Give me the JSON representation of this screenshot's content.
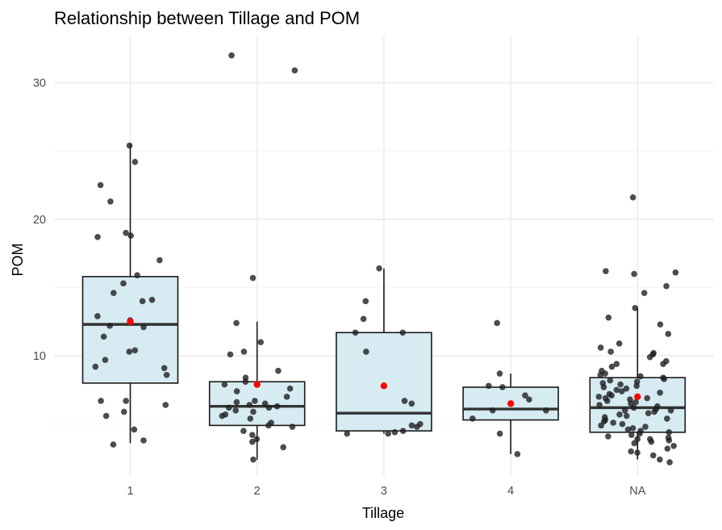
{
  "chart_data": {
    "type": "boxplot",
    "title": "Relationship between Tillage and POM",
    "xlabel": "Tillage",
    "ylabel": "POM",
    "categories": [
      "1",
      "2",
      "3",
      "4",
      "NA"
    ],
    "ylim": [
      1.2,
      33.4
    ],
    "y_ticks": [
      10,
      20,
      30
    ],
    "grid": true,
    "colors": {
      "box_fill": "#d6ebf2",
      "box_stroke": "#1a1a1a",
      "median": "#333333",
      "point": "#1f1f1f",
      "mean": "#ff0000",
      "grid_major": "#ebebeb",
      "grid_minor": "#f4f4f4"
    },
    "boxes": [
      {
        "category": "1",
        "whisker_low": 3.6,
        "q1": 8.0,
        "median": 12.3,
        "q3": 15.8,
        "whisker_high": 25.5,
        "mean": 12.5,
        "outliers": []
      },
      {
        "category": "2",
        "whisker_low": 2.4,
        "q1": 4.9,
        "median": 6.3,
        "q3": 8.1,
        "whisker_high": 12.5,
        "mean": 7.9,
        "outliers": [
          30.9,
          32.0
        ]
      },
      {
        "category": "3",
        "whisker_low": 4.3,
        "q1": 4.5,
        "median": 5.8,
        "q3": 11.7,
        "whisker_high": 16.4,
        "mean": 7.8,
        "outliers": []
      },
      {
        "category": "4",
        "whisker_low": 2.8,
        "q1": 5.3,
        "median": 6.1,
        "q3": 7.7,
        "whisker_high": 8.7,
        "mean": 6.5,
        "outliers": []
      },
      {
        "category": "NA",
        "whisker_low": 2.4,
        "q1": 4.4,
        "median": 6.2,
        "q3": 8.4,
        "whisker_high": 13.5,
        "mean": 7.0,
        "outliers": []
      }
    ],
    "points": [
      {
        "category": "1",
        "values": [
          25.4,
          24.2,
          22.5,
          21.3,
          19.0,
          18.8,
          18.7,
          17.0,
          15.9,
          15.3,
          14.6,
          14.1,
          14.0,
          12.9,
          12.6,
          12.2,
          12.1,
          11.4,
          10.4,
          10.3,
          9.7,
          9.2,
          9.1,
          8.6,
          6.7,
          6.7,
          6.4,
          5.6,
          5.9,
          4.6,
          3.8,
          3.5
        ]
      },
      {
        "category": "2",
        "values": [
          32.0,
          30.9,
          15.7,
          12.4,
          11.0,
          10.3,
          10.1,
          8.9,
          8.4,
          8.1,
          7.9,
          7.6,
          7.4,
          7.0,
          6.7,
          6.6,
          6.5,
          6.4,
          6.3,
          6.2,
          6.2,
          6.0,
          5.9,
          5.7,
          5.6,
          5.4,
          5.1,
          4.9,
          4.8,
          4.5,
          4.2,
          3.9,
          3.7,
          3.3,
          2.4
        ]
      },
      {
        "category": "3",
        "values": [
          16.4,
          14.0,
          12.7,
          11.7,
          11.7,
          10.3,
          6.7,
          6.5,
          5.0,
          4.8,
          4.9,
          4.5,
          4.4,
          4.3,
          4.3
        ]
      },
      {
        "category": "4",
        "values": [
          12.4,
          8.7,
          7.8,
          7.7,
          7.1,
          6.8,
          6.0,
          6.0,
          5.4,
          4.3,
          2.8
        ]
      },
      {
        "category": "NA",
        "values": [
          21.6,
          16.2,
          16.1,
          16.0,
          15.1,
          14.6,
          13.5,
          12.8,
          12.3,
          11.6,
          10.9,
          10.6,
          10.3,
          10.2,
          10.1,
          9.9,
          9.6,
          9.4,
          9.4,
          9.2,
          8.9,
          8.7,
          8.6,
          8.5,
          8.4,
          8.3,
          8.2,
          8.1,
          8.0,
          7.9,
          7.8,
          7.7,
          7.6,
          7.5,
          7.4,
          7.3,
          7.2,
          7.1,
          7.0,
          6.9,
          6.9,
          6.8,
          6.7,
          6.6,
          6.5,
          6.4,
          6.3,
          6.2,
          6.1,
          6.0,
          6.0,
          5.9,
          5.8,
          5.7,
          5.6,
          5.5,
          5.4,
          5.3,
          5.2,
          5.1,
          5.0,
          4.9,
          4.8,
          4.7,
          4.6,
          4.5,
          4.4,
          4.3,
          4.2,
          4.1,
          4.0,
          3.9,
          3.9,
          3.8,
          3.7,
          3.6,
          3.4,
          3.2,
          3.0,
          2.9,
          2.7,
          2.4,
          2.2
        ]
      }
    ]
  }
}
